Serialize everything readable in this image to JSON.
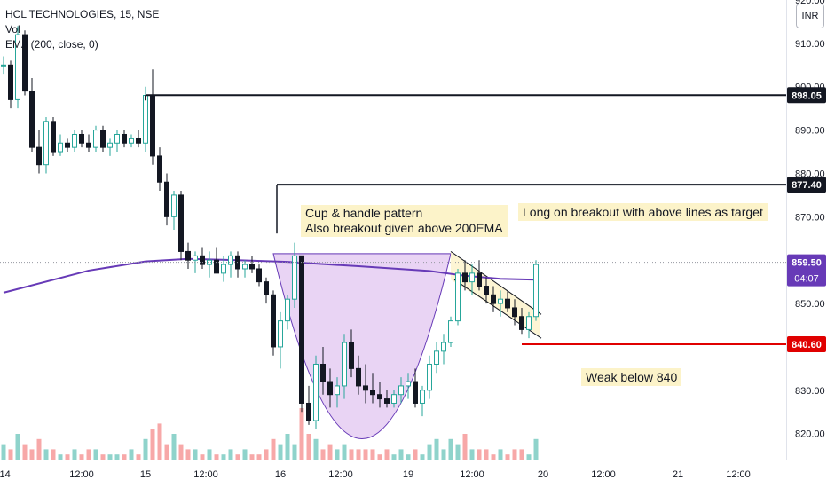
{
  "legend": {
    "symbol_line": "HCL TECHNOLOGIES, 15, NSE",
    "volume_label": "Vol",
    "ema_label": "EMA (200, close, 0)"
  },
  "currency_button": "INR",
  "annotations": {
    "pattern_line1": "Cup & handle pattern",
    "pattern_line2": "Also breakout given above 200EMA",
    "target_note": "Long on breakout with above lines as target",
    "weak_note": "Weak below 840"
  },
  "price_badges": {
    "target_high": "898.05",
    "target_mid": "877.40",
    "current": "859.50",
    "countdown": "04:07",
    "support": "840.60"
  },
  "colors": {
    "up": "#26a69a",
    "down": "#131722",
    "ema": "#673ab7",
    "support": "#e00000",
    "cup_fill": "#e1c6f0",
    "handle_fill": "#fcf3c9",
    "vol_up": "#8fd3cb",
    "vol_down": "#f7a8a8"
  },
  "chart_data": {
    "type": "candlestick",
    "ylim": [
      814,
      920
    ],
    "y_ticks": [
      "920.00",
      "910.00",
      "900.00",
      "890.00",
      "880.00",
      "870.00",
      "860.00",
      "850.00",
      "840.00",
      "830.00",
      "820.00"
    ],
    "x_ticks": [
      "14",
      "12:00",
      "15",
      "12:00",
      "16",
      "12:00",
      "19",
      "12:00",
      "20",
      "12:00",
      "21",
      "12:00"
    ],
    "levels": {
      "target_high": 898.05,
      "target_mid": 877.4,
      "current": 859.5,
      "support": 840.6
    },
    "candles": [
      [
        905,
        907,
        903,
        905
      ],
      [
        905,
        906,
        895,
        897
      ],
      [
        897,
        914,
        895,
        912
      ],
      [
        912,
        913,
        898,
        899
      ],
      [
        899,
        902,
        885,
        886
      ],
      [
        886,
        890,
        880,
        882
      ],
      [
        882,
        893,
        880,
        892
      ],
      [
        892,
        893,
        884,
        885
      ],
      [
        885,
        889,
        884,
        887
      ],
      [
        887,
        888,
        885,
        886
      ],
      [
        886,
        890,
        885,
        889
      ],
      [
        889,
        890,
        886,
        887
      ],
      [
        887,
        889,
        885,
        886
      ],
      [
        886,
        891,
        885,
        890
      ],
      [
        890,
        891,
        885,
        886
      ],
      [
        886,
        888,
        884,
        887
      ],
      [
        887,
        890,
        885,
        889
      ],
      [
        889,
        890,
        886,
        887
      ],
      [
        887,
        889,
        886,
        888
      ],
      [
        888,
        890,
        886,
        887
      ],
      [
        887,
        900,
        885,
        898
      ],
      [
        898,
        904,
        882,
        884
      ],
      [
        884,
        886,
        876,
        878
      ],
      [
        878,
        880,
        868,
        870
      ],
      [
        870,
        876,
        867,
        875
      ],
      [
        875,
        876,
        860,
        862
      ],
      [
        862,
        864,
        858,
        860
      ],
      [
        860,
        862,
        857,
        861
      ],
      [
        861,
        863,
        858,
        859
      ],
      [
        859,
        862,
        856,
        860
      ],
      [
        860,
        863,
        858,
        857
      ],
      [
        857,
        861,
        855,
        859
      ],
      [
        859,
        862,
        856,
        861
      ],
      [
        861,
        862,
        856,
        858
      ],
      [
        858,
        860,
        856,
        859
      ],
      [
        859,
        861,
        857,
        858
      ],
      [
        858,
        859,
        854,
        855
      ],
      [
        855,
        856,
        850,
        852
      ],
      [
        852,
        853,
        838,
        840
      ],
      [
        840,
        848,
        835,
        846
      ],
      [
        846,
        852,
        844,
        851
      ],
      [
        851,
        864,
        849,
        861
      ],
      [
        861,
        861,
        825,
        827
      ],
      [
        827,
        831,
        822,
        823
      ],
      [
        823,
        838,
        821,
        836
      ],
      [
        836,
        840,
        829,
        832
      ],
      [
        832,
        835,
        826,
        829
      ],
      [
        829,
        833,
        826,
        831
      ],
      [
        831,
        843,
        828,
        841
      ],
      [
        841,
        844,
        833,
        835
      ],
      [
        835,
        838,
        829,
        831
      ],
      [
        831,
        836,
        827,
        830
      ],
      [
        830,
        834,
        827,
        829
      ],
      [
        829,
        832,
        826,
        828
      ],
      [
        828,
        830,
        826,
        827
      ],
      [
        827,
        830,
        826,
        829
      ],
      [
        829,
        833,
        827,
        831
      ],
      [
        831,
        834,
        828,
        832
      ],
      [
        832,
        835,
        826,
        827
      ],
      [
        827,
        831,
        824,
        830
      ],
      [
        830,
        838,
        828,
        836
      ],
      [
        836,
        841,
        834,
        839
      ],
      [
        839,
        843,
        836,
        841
      ],
      [
        841,
        847,
        840,
        846
      ],
      [
        846,
        858,
        845,
        857
      ],
      [
        857,
        860,
        853,
        855
      ],
      [
        855,
        859,
        852,
        857
      ],
      [
        857,
        860,
        853,
        854
      ],
      [
        854,
        856,
        850,
        852
      ],
      [
        852,
        854,
        848,
        850
      ],
      [
        850,
        853,
        847,
        851
      ],
      [
        851,
        853,
        848,
        849
      ],
      [
        849,
        851,
        845,
        847
      ],
      [
        847,
        849,
        843,
        844
      ],
      [
        844,
        848,
        842,
        847
      ],
      [
        847,
        860,
        846,
        859
      ]
    ],
    "volume": [
      3,
      2,
      5,
      3,
      2,
      4,
      2,
      2,
      1,
      1,
      2,
      1,
      2,
      2,
      1,
      1,
      1,
      1,
      2,
      1,
      4,
      6,
      7,
      3,
      5,
      3,
      2,
      2,
      1,
      2,
      1,
      1,
      2,
      1,
      2,
      1,
      1,
      2,
      4,
      3,
      5,
      3,
      10,
      5,
      4,
      2,
      3,
      2,
      3,
      2,
      2,
      2,
      2,
      1,
      2,
      1,
      2,
      1,
      2,
      1,
      3,
      4,
      2,
      4,
      3,
      5,
      2,
      2,
      2,
      1,
      2,
      1,
      2,
      2,
      1,
      4
    ],
    "ema": [
      [
        0,
        852.5
      ],
      [
        12,
        857.6
      ],
      [
        20,
        859.7
      ],
      [
        26,
        860.3
      ],
      [
        33,
        860.0
      ],
      [
        40,
        859.6
      ],
      [
        50,
        858.6
      ],
      [
        60,
        857.5
      ],
      [
        65,
        856.4
      ],
      [
        70,
        855.7
      ],
      [
        75,
        855.5
      ]
    ]
  }
}
